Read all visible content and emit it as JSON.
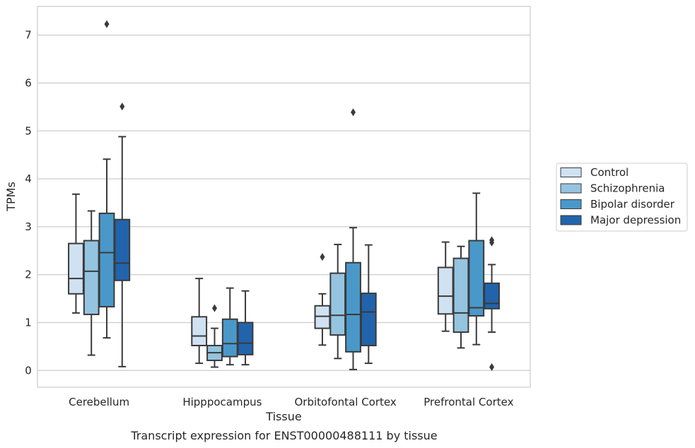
{
  "caption": "Transcript expression for ENST00000488111 by tissue",
  "chart_data": {
    "type": "box",
    "xlabel": "Tissue",
    "ylabel": "TPMs",
    "ylim": [
      -0.35,
      7.6
    ],
    "yticks": [
      0,
      1,
      2,
      3,
      4,
      5,
      6,
      7
    ],
    "grid": "horizontal",
    "legend_position": "right",
    "categories": [
      "Cerebellum",
      "Hipppocampus",
      "Orbitofontal Cortex",
      "Prefrontal Cortex"
    ],
    "series": [
      {
        "name": "Control",
        "color": "#d0e1f2",
        "boxes": [
          {
            "whislo": 1.2,
            "q1": 1.6,
            "med": 1.92,
            "q3": 2.65,
            "whishi": 3.68,
            "fliers": []
          },
          {
            "whislo": 0.15,
            "q1": 0.52,
            "med": 0.72,
            "q3": 1.12,
            "whishi": 1.92,
            "fliers": []
          },
          {
            "whislo": 0.53,
            "q1": 0.88,
            "med": 1.13,
            "q3": 1.35,
            "whishi": 1.6,
            "fliers": [
              2.37
            ]
          },
          {
            "whislo": 0.82,
            "q1": 1.18,
            "med": 1.55,
            "q3": 2.15,
            "whishi": 2.68,
            "fliers": []
          }
        ]
      },
      {
        "name": "Schizophrenia",
        "color": "#94c4df",
        "boxes": [
          {
            "whislo": 0.32,
            "q1": 1.17,
            "med": 2.07,
            "q3": 2.71,
            "whishi": 3.33,
            "fliers": []
          },
          {
            "whislo": 0.07,
            "q1": 0.21,
            "med": 0.37,
            "q3": 0.52,
            "whishi": 0.88,
            "fliers": [
              1.3
            ]
          },
          {
            "whislo": 0.25,
            "q1": 0.74,
            "med": 1.15,
            "q3": 2.03,
            "whishi": 2.63,
            "fliers": []
          },
          {
            "whislo": 0.47,
            "q1": 0.8,
            "med": 1.2,
            "q3": 2.34,
            "whishi": 2.59,
            "fliers": []
          }
        ]
      },
      {
        "name": "Bipolar disorder",
        "color": "#4a98c9",
        "boxes": [
          {
            "whislo": 0.68,
            "q1": 1.33,
            "med": 2.46,
            "q3": 3.28,
            "whishi": 4.41,
            "fliers": [
              7.23
            ]
          },
          {
            "whislo": 0.12,
            "q1": 0.29,
            "med": 0.56,
            "q3": 1.07,
            "whishi": 1.72,
            "fliers": []
          },
          {
            "whislo": 0.02,
            "q1": 0.39,
            "med": 1.17,
            "q3": 2.25,
            "whishi": 2.98,
            "fliers": [
              5.39
            ]
          },
          {
            "whislo": 0.54,
            "q1": 1.14,
            "med": 1.31,
            "q3": 2.71,
            "whishi": 3.7,
            "fliers": []
          }
        ]
      },
      {
        "name": "Major depression",
        "color": "#2164ab",
        "boxes": [
          {
            "whislo": 0.08,
            "q1": 1.88,
            "med": 2.24,
            "q3": 3.15,
            "whishi": 4.88,
            "fliers": [
              5.51
            ]
          },
          {
            "whislo": 0.12,
            "q1": 0.33,
            "med": 0.57,
            "q3": 1.0,
            "whishi": 1.66,
            "fliers": []
          },
          {
            "whislo": 0.15,
            "q1": 0.52,
            "med": 1.22,
            "q3": 1.61,
            "whishi": 2.62,
            "fliers": []
          },
          {
            "whislo": 0.8,
            "q1": 1.29,
            "med": 1.4,
            "q3": 1.82,
            "whishi": 2.21,
            "fliers": [
              2.67,
              2.72,
              0.07
            ]
          }
        ]
      }
    ]
  }
}
